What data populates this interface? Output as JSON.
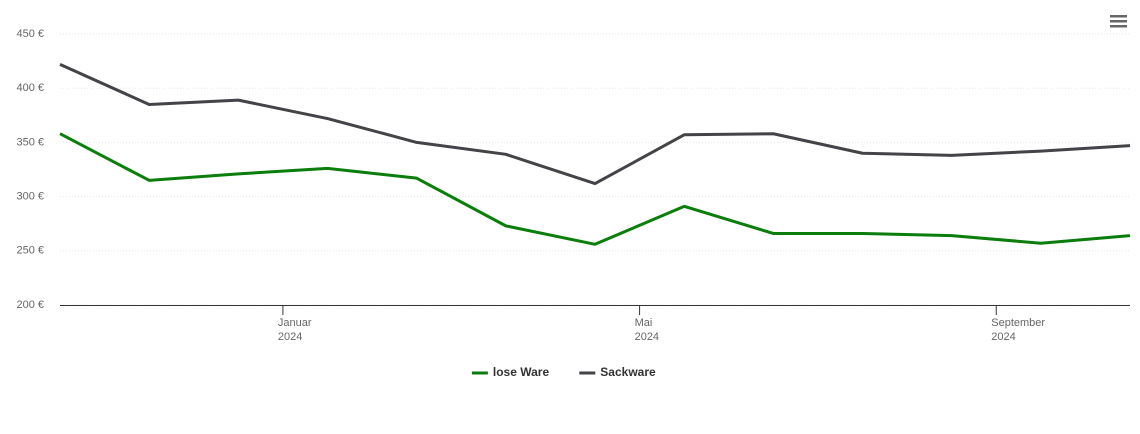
{
  "chart_data": {
    "type": "line",
    "x": [
      "2023-10",
      "2023-11",
      "2023-12",
      "2024-01",
      "2024-02",
      "2024-03",
      "2024-04",
      "2024-05",
      "2024-06",
      "2024-07",
      "2024-08",
      "2024-09",
      "2024-10"
    ],
    "series": [
      {
        "name": "lose Ware",
        "color": "#0a7d0a",
        "values": [
          358,
          315,
          321,
          326,
          317,
          273,
          256,
          291,
          266,
          266,
          264,
          257,
          264
        ]
      },
      {
        "name": "Sackware",
        "color": "#434348",
        "values": [
          422,
          385,
          389,
          372,
          350,
          339,
          312,
          357,
          358,
          340,
          338,
          342,
          347
        ]
      }
    ],
    "xlim": [
      "2023-10",
      "2024-10"
    ],
    "xticks": [
      {
        "value": "2024-01",
        "label": "Januar 2024"
      },
      {
        "value": "2024-05",
        "label": "Mai 2024"
      },
      {
        "value": "2024-09",
        "label": "September 2024"
      }
    ],
    "ylim": [
      200,
      450
    ],
    "yticks": [
      {
        "value": 200,
        "label": "200 €"
      },
      {
        "value": 250,
        "label": "250 €"
      },
      {
        "value": 300,
        "label": "300 €"
      },
      {
        "value": 350,
        "label": "350 €"
      },
      {
        "value": 400,
        "label": "400 €"
      },
      {
        "value": 450,
        "label": "450 €"
      }
    ],
    "grid": true,
    "legend": "bottom"
  }
}
